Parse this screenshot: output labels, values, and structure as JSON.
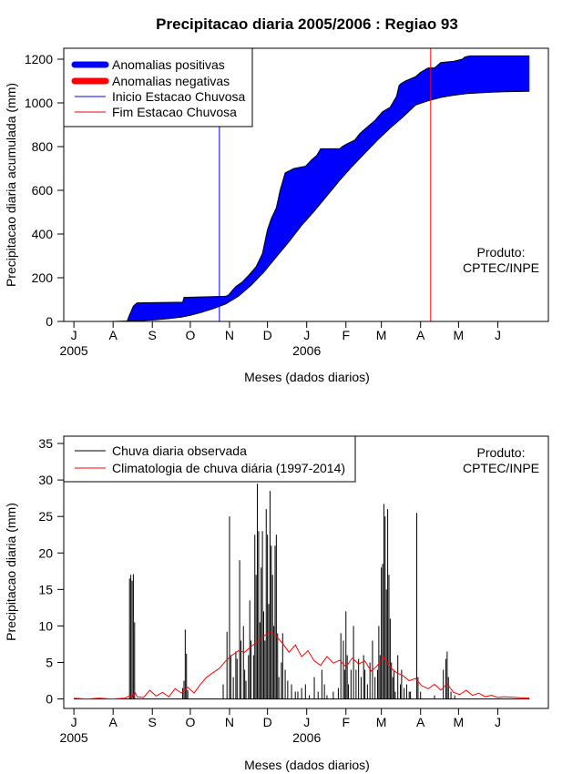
{
  "chart_data": [
    {
      "type": "area",
      "title": "Precipitacao diaria 2005/2006 : Regiao 93",
      "xlabel": "Meses (dados diarios)",
      "ylabel": "Precipitacao diaria acumulada (mm)",
      "ylim": [
        0,
        1250
      ],
      "yticks": [
        0,
        200,
        400,
        600,
        800,
        1000,
        1200
      ],
      "xlim": [
        -8,
        375
      ],
      "month_ticks": [
        {
          "label": "J",
          "day": 0
        },
        {
          "label": "A",
          "day": 31
        },
        {
          "label": "S",
          "day": 62
        },
        {
          "label": "O",
          "day": 92
        },
        {
          "label": "N",
          "day": 123
        },
        {
          "label": "D",
          "day": 153
        },
        {
          "label": "J",
          "day": 184
        },
        {
          "label": "F",
          "day": 215
        },
        {
          "label": "M",
          "day": 243
        },
        {
          "label": "A",
          "day": 274
        },
        {
          "label": "M",
          "day": 304
        },
        {
          "label": "J",
          "day": 335
        }
      ],
      "year_labels": [
        {
          "label": "2005",
          "day": 0
        },
        {
          "label": "2006",
          "day": 184
        }
      ],
      "observed_accumulated": {
        "day": [
          0,
          42,
          44,
          47,
          50,
          86,
          87,
          120,
          122,
          128,
          133,
          138,
          144,
          149,
          153,
          156,
          160,
          163,
          167,
          174,
          183,
          188,
          192,
          195,
          210,
          212,
          215,
          222,
          226,
          230,
          234,
          238,
          244,
          250,
          255,
          257,
          259,
          262,
          266,
          270,
          274,
          280,
          285,
          290,
          300,
          307,
          309,
          313,
          360
        ],
        "value": [
          0,
          0,
          30,
          70,
          85,
          88,
          110,
          115,
          120,
          160,
          180,
          210,
          250,
          310,
          420,
          470,
          520,
          600,
          680,
          700,
          710,
          740,
          760,
          790,
          790,
          800,
          810,
          830,
          860,
          880,
          900,
          920,
          960,
          980,
          1030,
          1080,
          1090,
          1100,
          1110,
          1120,
          1140,
          1160,
          1160,
          1185,
          1190,
          1200,
          1210,
          1215,
          1215
        ]
      },
      "climatology_accumulated": {
        "day": [
          0,
          30,
          45,
          55,
          65,
          75,
          85,
          92,
          100,
          110,
          120,
          130,
          140,
          150,
          160,
          170,
          180,
          190,
          200,
          210,
          220,
          230,
          240,
          250,
          260,
          270,
          280,
          290,
          300,
          310,
          320,
          330,
          340,
          350,
          360
        ],
        "value": [
          0,
          0,
          2,
          4,
          8,
          13,
          20,
          28,
          40,
          58,
          80,
          115,
          165,
          225,
          295,
          365,
          440,
          505,
          575,
          645,
          710,
          770,
          830,
          885,
          935,
          990,
          1010,
          1025,
          1035,
          1042,
          1046,
          1049,
          1051,
          1052,
          1053
        ]
      },
      "season_start_day": 115,
      "season_end_day": 282,
      "annotation": [
        "Produto:",
        "CPTEC/INPE"
      ],
      "legend": {
        "placement": "top-left",
        "entries": [
          {
            "label": "Anomalias positivas",
            "color": "#0000ff",
            "style": "thick"
          },
          {
            "label": "Anomalias negativas",
            "color": "#ff0000",
            "style": "thick"
          },
          {
            "label": "Inicio Estacao Chuvosa",
            "color": "#0000ff",
            "style": "thin"
          },
          {
            "label": "Fim Estacao Chuvosa",
            "color": "#ff0000",
            "style": "thin"
          }
        ]
      },
      "colors": {
        "positive": "#0000ff",
        "negative": "#ff0000",
        "start": "#0000ff",
        "end": "#ff0000"
      }
    },
    {
      "type": "bar",
      "xlabel": "Meses (dados diarios)",
      "ylabel": "Precipitacao diaria (mm)",
      "ylim": [
        -1.3,
        36
      ],
      "yticks": [
        0,
        5,
        10,
        15,
        20,
        25,
        30,
        35
      ],
      "xlim": [
        -8,
        375
      ],
      "month_ticks": [
        {
          "label": "J",
          "day": 0
        },
        {
          "label": "A",
          "day": 31
        },
        {
          "label": "S",
          "day": 62
        },
        {
          "label": "O",
          "day": 92
        },
        {
          "label": "N",
          "day": 123
        },
        {
          "label": "D",
          "day": 153
        },
        {
          "label": "J",
          "day": 184
        },
        {
          "label": "F",
          "day": 215
        },
        {
          "label": "M",
          "day": 243
        },
        {
          "label": "A",
          "day": 274
        },
        {
          "label": "M",
          "day": 304
        },
        {
          "label": "J",
          "day": 335
        }
      ],
      "year_labels": [
        {
          "label": "2005",
          "day": 0
        },
        {
          "label": "2006",
          "day": 184
        }
      ],
      "observed_daily": [
        [
          44,
          16.5
        ],
        [
          45,
          17
        ],
        [
          46,
          16.2
        ],
        [
          47,
          17.1
        ],
        [
          48,
          10.5
        ],
        [
          86,
          1.5
        ],
        [
          87,
          2.5
        ],
        [
          88,
          9.5
        ],
        [
          89,
          6.2
        ],
        [
          90,
          1.2
        ],
        [
          118,
          2
        ],
        [
          121,
          9.2
        ],
        [
          123,
          25
        ],
        [
          124,
          6
        ],
        [
          126,
          3
        ],
        [
          128,
          6.5
        ],
        [
          129,
          5.5
        ],
        [
          131,
          19
        ],
        [
          132,
          8
        ],
        [
          134,
          10
        ],
        [
          135,
          4
        ],
        [
          136,
          2.5
        ],
        [
          138,
          6
        ],
        [
          139,
          13.5
        ],
        [
          140,
          8
        ],
        [
          142,
          6
        ],
        [
          143,
          22.5
        ],
        [
          144,
          17
        ],
        [
          145,
          29.5
        ],
        [
          146,
          23
        ],
        [
          147,
          10.5
        ],
        [
          148,
          18
        ],
        [
          149,
          23
        ],
        [
          150,
          12
        ],
        [
          151,
          8
        ],
        [
          152,
          26
        ],
        [
          153,
          22.5
        ],
        [
          154,
          13
        ],
        [
          155,
          28.5
        ],
        [
          156,
          21
        ],
        [
          157,
          17
        ],
        [
          158,
          10
        ],
        [
          159,
          21
        ],
        [
          160,
          22.5
        ],
        [
          161,
          9
        ],
        [
          162,
          3
        ],
        [
          164,
          5
        ],
        [
          165,
          9
        ],
        [
          167,
          4
        ],
        [
          169,
          2.5
        ],
        [
          172,
          2
        ],
        [
          175,
          1
        ],
        [
          177,
          1
        ],
        [
          180,
          1.5
        ],
        [
          183,
          2
        ],
        [
          186,
          0.5
        ],
        [
          190,
          3
        ],
        [
          193,
          1
        ],
        [
          196,
          4
        ],
        [
          198,
          2
        ],
        [
          200,
          0.5
        ],
        [
          205,
          1
        ],
        [
          209,
          1.5
        ],
        [
          211,
          9
        ],
        [
          213,
          8
        ],
        [
          214,
          4
        ],
        [
          215,
          12
        ],
        [
          216,
          6
        ],
        [
          217,
          2
        ],
        [
          219,
          4
        ],
        [
          221,
          10
        ],
        [
          223,
          4
        ],
        [
          225,
          5.5
        ],
        [
          227,
          3
        ],
        [
          229,
          6
        ],
        [
          230,
          4
        ],
        [
          232,
          2
        ],
        [
          234,
          5
        ],
        [
          236,
          8
        ],
        [
          238,
          3
        ],
        [
          240,
          4
        ],
        [
          241,
          10
        ],
        [
          242,
          6
        ],
        [
          243,
          18
        ],
        [
          244,
          18.5
        ],
        [
          245,
          26.7
        ],
        [
          246,
          25
        ],
        [
          247,
          15
        ],
        [
          248,
          26
        ],
        [
          249,
          17
        ],
        [
          250,
          11
        ],
        [
          251,
          5
        ],
        [
          252,
          3
        ],
        [
          253,
          4
        ],
        [
          254,
          1
        ],
        [
          256,
          6
        ],
        [
          258,
          2
        ],
        [
          259,
          4
        ],
        [
          261,
          1.5
        ],
        [
          263,
          2
        ],
        [
          265,
          1
        ],
        [
          266,
          1
        ],
        [
          271,
          25.5
        ],
        [
          272,
          3
        ],
        [
          274,
          1
        ],
        [
          285,
          0.5
        ],
        [
          292,
          4
        ],
        [
          294,
          5.5
        ],
        [
          295,
          6.5
        ],
        [
          296,
          3
        ],
        [
          298,
          1
        ],
        [
          301,
          0.5
        ]
      ],
      "climatology_daily": {
        "day": [
          0,
          10,
          20,
          30,
          40,
          44,
          46,
          48,
          50,
          55,
          60,
          65,
          70,
          75,
          80,
          85,
          90,
          95,
          100,
          105,
          110,
          115,
          120,
          125,
          130,
          135,
          140,
          145,
          150,
          155,
          160,
          165,
          170,
          175,
          180,
          185,
          190,
          195,
          200,
          205,
          210,
          215,
          220,
          225,
          230,
          235,
          240,
          245,
          250,
          255,
          260,
          265,
          270,
          275,
          280,
          285,
          290,
          295,
          300,
          305,
          310,
          315,
          320,
          325,
          330,
          335,
          340,
          350,
          360
        ],
        "value": [
          0.1,
          0.0,
          0.1,
          0.0,
          0.1,
          0.4,
          0.1,
          1.0,
          0.3,
          0.2,
          1.2,
          0.4,
          0.9,
          0.3,
          1.4,
          0.8,
          1.6,
          0.8,
          2.0,
          3.0,
          3.6,
          4.2,
          5.2,
          6.0,
          6.6,
          6.4,
          7.2,
          7.8,
          8.6,
          9.2,
          8.6,
          7.6,
          6.4,
          7.4,
          5.8,
          6.6,
          5.2,
          4.6,
          5.8,
          4.9,
          5.3,
          4.4,
          5.6,
          4.8,
          5.2,
          3.8,
          4.6,
          5.8,
          4.3,
          3.6,
          3.2,
          2.5,
          2.8,
          1.8,
          1.4,
          2.0,
          1.2,
          2.1,
          0.9,
          0.6,
          1.2,
          0.5,
          0.8,
          0.3,
          0.5,
          0.2,
          0.3,
          0.2,
          0.1
        ]
      },
      "annotation": [
        "Produto:",
        "CPTEC/INPE"
      ],
      "legend": {
        "placement": "top-left",
        "entries": [
          {
            "label": "Chuva diaria observada",
            "color": "#000000"
          },
          {
            "label": "Climatologia de chuva diária (1997-2014)",
            "color": "#ff0000"
          }
        ]
      },
      "colors": {
        "observed": "#000000",
        "climatology": "#ff0000"
      }
    }
  ]
}
